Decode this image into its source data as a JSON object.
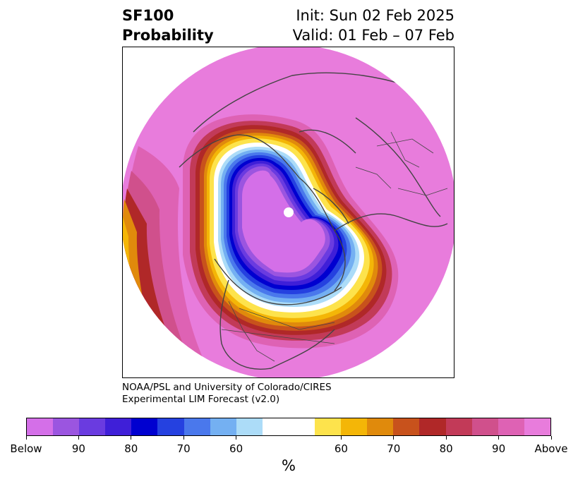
{
  "title": {
    "left_line1": "SF100",
    "left_line2": "Probability",
    "right_line1": "Init: Sun 02 Feb 2025",
    "right_line2": "Valid: 01 Feb – 07 Feb"
  },
  "credit": {
    "line1": "NOAA/PSL and University of Colorado/CIRES",
    "line2": "Experimental LIM Forecast (v2.0)"
  },
  "colorbar": {
    "unit_label": "%",
    "tick_labels": [
      "Below",
      "90",
      "80",
      "70",
      "60",
      "60",
      "70",
      "80",
      "90",
      "Above"
    ],
    "colors": [
      "#d46fe8",
      "#9b55e0",
      "#6a3be0",
      "#3f1fd8",
      "#0000d0",
      "#2541e0",
      "#4a78ec",
      "#74b0f2",
      "#acdcf8",
      "#ffffff",
      "#fde34c",
      "#f4b607",
      "#e08a0c",
      "#c8521c",
      "#b02828",
      "#c23a58",
      "#d0508c",
      "#de62b4",
      "#e87cdc"
    ]
  },
  "map": {
    "projection": "north-polar-stereographic",
    "field": "SF100 probability",
    "background_color": "#e87cdc",
    "below_color": "#d46fe8",
    "regions": "Northern Hemisphere"
  }
}
